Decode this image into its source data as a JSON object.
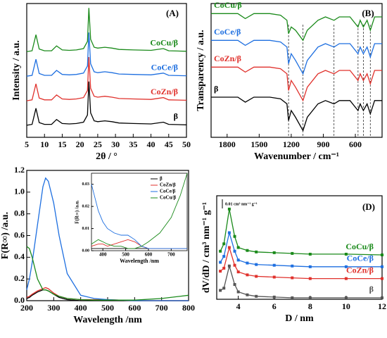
{
  "chart_data": [
    {
      "type": "line",
      "panel_label": "(A)",
      "xlabel": "2θ / °",
      "ylabel": "Intensity / a.u.",
      "legend": "inline",
      "xlim": [
        5,
        50
      ],
      "ylim": [
        0,
        60
      ],
      "xticks": [
        5,
        10,
        15,
        20,
        25,
        30,
        35,
        40,
        45,
        50
      ],
      "x": [
        5,
        6.5,
        7.6,
        8.5,
        10,
        12,
        13.4,
        15,
        17,
        19,
        21,
        22.1,
        22.5,
        23,
        24,
        25,
        27,
        29,
        31,
        35,
        40,
        43.5,
        45,
        50
      ],
      "series": [
        {
          "name": "β",
          "color": "#000000",
          "values": [
            5.4,
            5.8,
            13,
            6.6,
            5.8,
            5.8,
            8,
            6.2,
            6,
            6.2,
            6.8,
            10,
            25,
            11,
            7.4,
            7,
            7.4,
            7,
            6.4,
            6.2,
            6,
            6.8,
            5.8,
            5.6
          ]
        },
        {
          "name": "CoZn/β",
          "color": "#e0312c",
          "values": [
            16.4,
            16.8,
            24,
            17.6,
            16.8,
            16.8,
            19,
            17.2,
            17,
            17.2,
            17.8,
            21,
            36,
            22,
            18.4,
            18,
            18.4,
            18,
            17.4,
            17.2,
            17,
            17.8,
            16.8,
            16.6
          ]
        },
        {
          "name": "CoCe/β",
          "color": "#1e6fe0",
          "values": [
            27.4,
            27.8,
            35,
            28.6,
            27.8,
            27.8,
            30,
            28.2,
            28,
            28.2,
            28.8,
            32,
            47,
            33,
            29.4,
            29,
            29.4,
            29,
            28.4,
            28.2,
            28,
            28.8,
            27.8,
            27.6
          ]
        },
        {
          "name": "CoCu/β",
          "color": "#1a8a1a",
          "values": [
            38.4,
            38.8,
            46,
            39.6,
            38.8,
            38.8,
            41,
            39.2,
            39,
            39.2,
            39.8,
            43,
            58,
            44,
            40.4,
            40,
            40.4,
            40,
            39.4,
            39.2,
            39,
            39.8,
            38.8,
            38.6
          ]
        }
      ]
    },
    {
      "type": "line",
      "panel_label": "(B)",
      "xlabel": "Wavenumber / cm⁻¹",
      "ylabel": "Transparency / a.u.",
      "legend": "inline",
      "xlim": [
        1950,
        350
      ],
      "ylim": [
        0,
        40
      ],
      "xticks": [
        1800,
        1500,
        1200,
        900,
        600
      ],
      "reference_lines": [
        1225,
        1090,
        800,
        575,
        525,
        460
      ],
      "x": [
        1950,
        1800,
        1700,
        1630,
        1550,
        1400,
        1300,
        1240,
        1225,
        1200,
        1160,
        1090,
        1050,
        950,
        880,
        800,
        750,
        650,
        575,
        555,
        525,
        490,
        460,
        420,
        350
      ],
      "series": [
        {
          "name": "β",
          "color": "#000000",
          "values": [
            12,
            12,
            12,
            10.5,
            12,
            12,
            11.5,
            10,
            5,
            8,
            6,
            2,
            6,
            10,
            11,
            10,
            11,
            11,
            8,
            10,
            8,
            10,
            7,
            11,
            11
          ]
        },
        {
          "name": "CoZn/β",
          "color": "#e0312c",
          "values": [
            21,
            21,
            21,
            19.5,
            21,
            21,
            20.5,
            19,
            14,
            17,
            15,
            11,
            15,
            19,
            20,
            19,
            20,
            20,
            17,
            19,
            17,
            19,
            16,
            20,
            20
          ]
        },
        {
          "name": "CoCe/β",
          "color": "#1e6fe0",
          "values": [
            29,
            29,
            29,
            27.5,
            29,
            29,
            28.5,
            27,
            22,
            25,
            23,
            19,
            23,
            27,
            28,
            27,
            28,
            28,
            25,
            27,
            25,
            27,
            24,
            28,
            28
          ]
        },
        {
          "name": "CoCu/β",
          "color": "#1a8a1a",
          "values": [
            37,
            37,
            37,
            35.5,
            37,
            37,
            36.5,
            35,
            31,
            33,
            32,
            29,
            32,
            35,
            36,
            35,
            36,
            36,
            33,
            35,
            33,
            35,
            32,
            36,
            36
          ]
        }
      ]
    },
    {
      "type": "line",
      "panel_label": "(C)",
      "xlabel": "Wavelength /nm",
      "ylabel": "F(R∞) /a.u.",
      "xlim": [
        200,
        800
      ],
      "ylim": [
        0,
        1.2
      ],
      "xticks": [
        200,
        300,
        400,
        500,
        600,
        700,
        800
      ],
      "yticks": [
        {
          "value": 0,
          "label": "0.0"
        },
        0.2,
        0.4,
        0.6,
        0.8,
        {
          "value": 1,
          "label": "1.0"
        },
        1.2
      ],
      "x": [
        200,
        210,
        220,
        240,
        260,
        270,
        280,
        300,
        320,
        350,
        400,
        450,
        500,
        600,
        700,
        800
      ],
      "series": [
        {
          "name": "β",
          "color": "#000000",
          "values": [
            0.02,
            0.03,
            0.05,
            0.08,
            0.1,
            0.1,
            0.09,
            0.06,
            0.03,
            0.01,
            0,
            0,
            0,
            0,
            0,
            0
          ]
        },
        {
          "name": "CoZn/β",
          "color": "#e0312c",
          "values": [
            0.03,
            0.04,
            0.06,
            0.09,
            0.11,
            0.12,
            0.11,
            0.07,
            0.04,
            0.02,
            0.01,
            0.01,
            0.01,
            0,
            0,
            0
          ]
        },
        {
          "name": "CoCe/β",
          "color": "#1e6fe0",
          "values": [
            0.1,
            0.2,
            0.35,
            0.7,
            1.05,
            1.13,
            1.1,
            0.9,
            0.6,
            0.25,
            0.05,
            0.02,
            0.01,
            0,
            0,
            0
          ]
        },
        {
          "name": "CoCu/β",
          "color": "#1a8a1a",
          "values": [
            0.5,
            0.48,
            0.4,
            0.2,
            0.1,
            0.1,
            0.09,
            0.06,
            0.04,
            0.02,
            0.01,
            0.005,
            0.005,
            0.005,
            0.02,
            0.05
          ]
        }
      ]
    },
    {
      "type": "line",
      "xlabel": "Wavelength /nm",
      "ylabel": "F(R∞) /a.u.",
      "legend": "upper right",
      "xlim": [
        350,
        770
      ],
      "ylim": [
        0,
        0.035
      ],
      "xticks": [
        400,
        500,
        600,
        700
      ],
      "yticks": [
        {
          "value": 0,
          "label": "0.00"
        },
        0.01,
        0.02,
        0.03
      ],
      "x": [
        350,
        380,
        400,
        420,
        450,
        480,
        510,
        540,
        570,
        600,
        650,
        700,
        740,
        770
      ],
      "series": [
        {
          "name": "β",
          "color": "#000000",
          "values": [
            0.001,
            0.001,
            0.001,
            0.001,
            0.001,
            0.001,
            0.001,
            0.001,
            0.001,
            0.001,
            0.001,
            0.001,
            0.001,
            0.001
          ]
        },
        {
          "name": "CoZn/β",
          "color": "#e0312c",
          "values": [
            0.002,
            0.003,
            0.003,
            0.002,
            0.003,
            0.004,
            0.005,
            0.004,
            0.002,
            0.001,
            0.001,
            0.001,
            0.001,
            0.001
          ]
        },
        {
          "name": "CoCe/β",
          "color": "#1e6fe0",
          "values": [
            0.03,
            0.018,
            0.013,
            0.01,
            0.008,
            0.007,
            0.007,
            0.005,
            0.002,
            0.001,
            0.001,
            0.001,
            0.001,
            0.001
          ]
        },
        {
          "name": "CoCu/β",
          "color": "#1a8a1a",
          "values": [
            0.003,
            0.005,
            0.004,
            0.003,
            0.002,
            0.002,
            0.001,
            0.001,
            0.002,
            0.004,
            0.008,
            0.015,
            0.025,
            0.035
          ]
        }
      ]
    },
    {
      "type": "line",
      "panel_label": "(D)",
      "xlabel": "D / nm",
      "ylabel": "dV/dD / cm³ nm⁻¹ g⁻¹",
      "legend": "inline",
      "markers": "square",
      "annotation": "0.01 cm³ nm⁻¹ g⁻¹",
      "xlim": [
        2.8,
        12
      ],
      "ylim": [
        0,
        14
      ],
      "xticks": [
        4,
        6,
        8,
        10,
        12
      ],
      "x": [
        3,
        3.2,
        3.5,
        3.8,
        4,
        4.5,
        5,
        6,
        7,
        8,
        10,
        12
      ],
      "series": [
        {
          "name": "β",
          "color": "#555555",
          "values": [
            1.2,
            1.5,
            4.5,
            2,
            1,
            0.6,
            0.4,
            0.3,
            0.2,
            0.2,
            0.2,
            0.2
          ]
        },
        {
          "name": "CoZn/β",
          "color": "#e0312c",
          "values": [
            3.8,
            4.2,
            7,
            4.6,
            3.7,
            3.3,
            3.1,
            3,
            2.9,
            2.8,
            2.8,
            2.8
          ]
        },
        {
          "name": "CoCe/β",
          "color": "#1e6fe0",
          "values": [
            5,
            5.8,
            9,
            6.5,
            5.3,
            4.9,
            4.7,
            4.6,
            4.5,
            4.4,
            4.4,
            4.4
          ]
        },
        {
          "name": "CoCu/β",
          "color": "#1a8a1a",
          "values": [
            6.5,
            7.5,
            12.2,
            8.5,
            7,
            6.6,
            6.4,
            6.3,
            6.2,
            6.1,
            6.1,
            6
          ]
        }
      ]
    }
  ]
}
